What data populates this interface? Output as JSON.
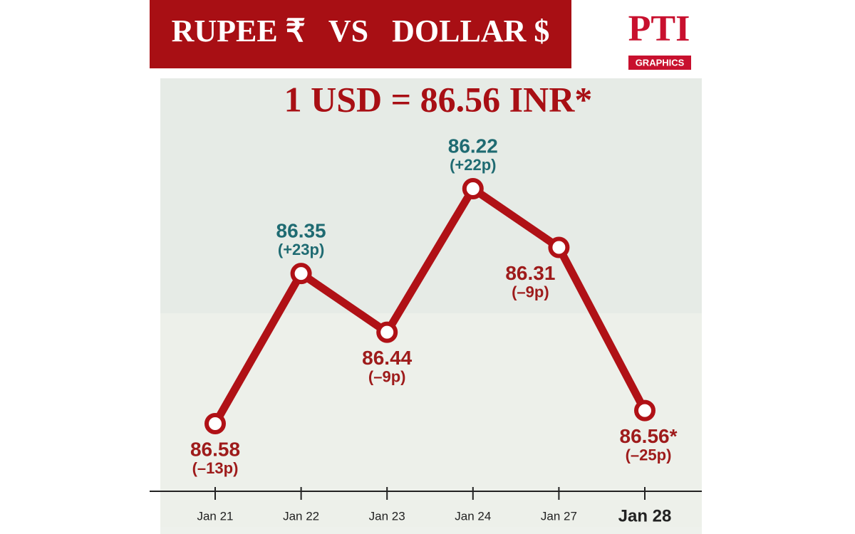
{
  "chart_data": {
    "type": "line",
    "title": "RUPEE ₹   VS   DOLLAR $",
    "subtitle": "1 USD = 86.56 INR*",
    "logo": "PTI",
    "logo_caption": "GRAPHICS",
    "categories": [
      "Jan 21",
      "Jan 22",
      "Jan 23",
      "Jan 24",
      "Jan 27",
      "Jan 28"
    ],
    "values": [
      86.58,
      86.35,
      86.44,
      86.22,
      86.31,
      86.56
    ],
    "value_labels": [
      "86.58",
      "86.35",
      "86.44",
      "86.22",
      "86.31",
      "86.56*"
    ],
    "changes": [
      "(–13p)",
      "(+23p)",
      "(–9p)",
      "(+22p)",
      "(–9p)",
      "(–25p)"
    ],
    "color": "#b01116",
    "label_colors": [
      "#9e1b1b",
      "#1f6b72",
      "#9e1b1b",
      "#1f6b72",
      "#9e1b1b",
      "#9e1b1b"
    ],
    "ylim": [
      86.6,
      86.2
    ]
  }
}
